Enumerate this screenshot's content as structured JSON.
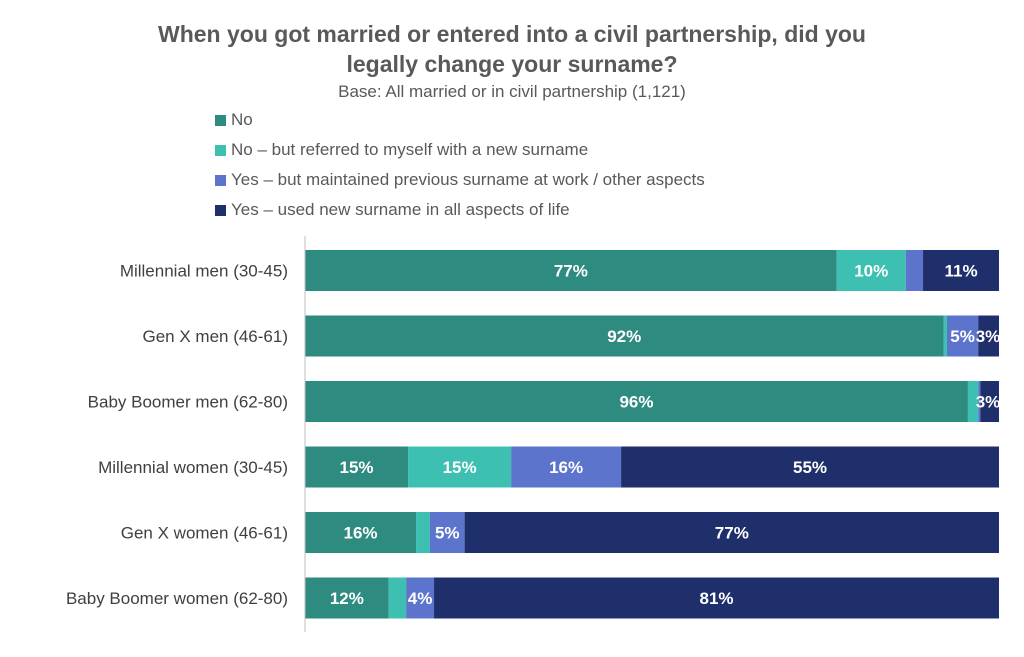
{
  "chart_data": {
    "type": "bar",
    "orientation": "horizontal",
    "stacked": true,
    "title_lines": [
      "When you got married or entered into a civil partnership, did you",
      "legally change your surname?"
    ],
    "subtitle": "Base: All married or in civil partnership (1,121)",
    "xlim": [
      0,
      100
    ],
    "grid": false,
    "legend_position": "top-left",
    "categories": [
      "Millennial men (30-45)",
      "Gen X men (46-61)",
      "Baby Boomer men (62-80)",
      "Millennial women (30-45)",
      "Gen X women (46-61)",
      "Baby Boomer women (62-80)"
    ],
    "series": [
      {
        "name": "No",
        "color": "#2e8b80",
        "values": [
          77,
          92,
          96,
          15,
          16,
          12
        ],
        "labels": [
          "77%",
          "92%",
          "96%",
          "15%",
          "16%",
          "12%"
        ]
      },
      {
        "name": "No – but referred to myself with a new surname",
        "color": "#3dbfb1",
        "values": [
          10,
          0.5,
          1.5,
          15,
          2,
          2.5
        ],
        "labels": [
          "10%",
          "",
          "",
          "15%",
          "",
          ""
        ]
      },
      {
        "name": "Yes – but maintained previous surname at work / other aspects",
        "color": "#5d74cc",
        "values": [
          2.5,
          4.5,
          0.3,
          16,
          5,
          4
        ],
        "labels": [
          "",
          "5%",
          "",
          "16%",
          "5%",
          "4%"
        ]
      },
      {
        "name": "Yes – used  new surname in all aspects of  life",
        "color": "#1f2f6b",
        "values": [
          11,
          3,
          2.7,
          55,
          77,
          81
        ],
        "labels": [
          "11%",
          "3%",
          "3%",
          "55%",
          "77%",
          "81%"
        ]
      }
    ]
  }
}
